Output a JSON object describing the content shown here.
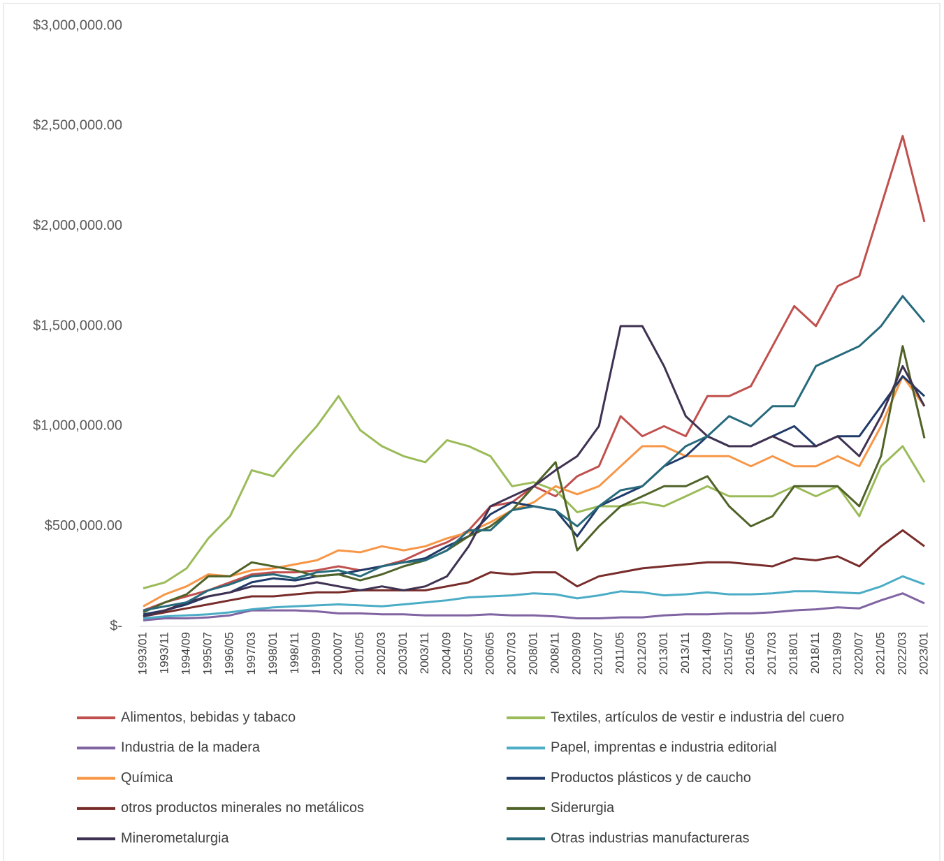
{
  "chart_data": {
    "type": "line",
    "categories": [
      "1993/01",
      "1993/11",
      "1994/09",
      "1995/07",
      "1996/05",
      "1997/03",
      "1998/01",
      "1998/11",
      "1999/09",
      "2000/07",
      "2001/05",
      "2002/03",
      "2003/01",
      "2003/11",
      "2004/09",
      "2005/07",
      "2006/05",
      "2007/03",
      "2008/01",
      "2008/11",
      "2009/09",
      "2010/07",
      "2011/05",
      "2012/03",
      "2013/01",
      "2013/11",
      "2014/09",
      "2015/07",
      "2016/05",
      "2017/03",
      "2018/01",
      "2018/11",
      "2019/09",
      "2020/07",
      "2021/05",
      "2022/03",
      "2023/01"
    ],
    "ylim": [
      0,
      3000000
    ],
    "yticks": [
      {
        "value": 0,
        "label": "$-"
      },
      {
        "value": 500000,
        "label": "$500,000.00"
      },
      {
        "value": 1000000,
        "label": "$1,000,000.00"
      },
      {
        "value": 1500000,
        "label": "$1,500,000.00"
      },
      {
        "value": 2000000,
        "label": "$2,000,000.00"
      },
      {
        "value": 2500000,
        "label": "$2,500,000.00"
      },
      {
        "value": 3000000,
        "label": "$3,000,000.00"
      }
    ],
    "series": [
      {
        "name": "Alimentos, bebidas y tabaco",
        "color": "#c0504d",
        "values": [
          80000,
          120000,
          150000,
          180000,
          220000,
          260000,
          270000,
          270000,
          280000,
          300000,
          280000,
          300000,
          330000,
          380000,
          420000,
          480000,
          600000,
          620000,
          700000,
          650000,
          750000,
          800000,
          1050000,
          950000,
          1000000,
          950000,
          1150000,
          1150000,
          1200000,
          1400000,
          1600000,
          1500000,
          1700000,
          1750000,
          2100000,
          2450000,
          2020000
        ]
      },
      {
        "name": "Textiles, artículos de vestir e industria del cuero",
        "color": "#9bbb59",
        "values": [
          190000,
          220000,
          290000,
          440000,
          550000,
          780000,
          750000,
          880000,
          1000000,
          1150000,
          980000,
          900000,
          850000,
          820000,
          930000,
          900000,
          850000,
          700000,
          720000,
          680000,
          570000,
          600000,
          600000,
          620000,
          600000,
          650000,
          700000,
          650000,
          650000,
          650000,
          700000,
          650000,
          700000,
          550000,
          800000,
          900000,
          720000
        ]
      },
      {
        "name": "Industria de la madera",
        "color": "#8064a2",
        "values": [
          30000,
          40000,
          40000,
          45000,
          55000,
          80000,
          80000,
          80000,
          75000,
          65000,
          65000,
          60000,
          60000,
          55000,
          55000,
          55000,
          60000,
          55000,
          55000,
          50000,
          40000,
          40000,
          45000,
          45000,
          55000,
          60000,
          60000,
          65000,
          65000,
          70000,
          80000,
          85000,
          95000,
          90000,
          130000,
          165000,
          115000
        ]
      },
      {
        "name": "Papel, imprentas e industria editorial",
        "color": "#4bacc6",
        "values": [
          40000,
          50000,
          55000,
          60000,
          70000,
          85000,
          95000,
          100000,
          105000,
          110000,
          105000,
          100000,
          110000,
          120000,
          130000,
          145000,
          150000,
          155000,
          165000,
          160000,
          140000,
          155000,
          175000,
          170000,
          155000,
          160000,
          170000,
          160000,
          160000,
          165000,
          175000,
          175000,
          170000,
          165000,
          200000,
          250000,
          210000
        ]
      },
      {
        "name": "Química",
        "color": "#f79646",
        "values": [
          100000,
          160000,
          200000,
          260000,
          250000,
          280000,
          290000,
          310000,
          330000,
          380000,
          370000,
          400000,
          380000,
          400000,
          440000,
          470000,
          520000,
          580000,
          620000,
          700000,
          660000,
          700000,
          800000,
          900000,
          900000,
          850000,
          850000,
          850000,
          800000,
          850000,
          800000,
          800000,
          850000,
          800000,
          1000000,
          1250000,
          1100000
        ]
      },
      {
        "name": "Productos plásticos y de caucho",
        "color": "#1f3a68",
        "values": [
          60000,
          80000,
          110000,
          150000,
          170000,
          220000,
          240000,
          230000,
          250000,
          260000,
          280000,
          300000,
          320000,
          340000,
          400000,
          450000,
          560000,
          620000,
          600000,
          580000,
          450000,
          600000,
          650000,
          700000,
          800000,
          850000,
          950000,
          900000,
          900000,
          950000,
          1000000,
          900000,
          950000,
          950000,
          1100000,
          1250000,
          1150000
        ]
      },
      {
        "name": "otros productos minerales no metálicos",
        "color": "#772c2a",
        "values": [
          50000,
          70000,
          90000,
          110000,
          130000,
          150000,
          150000,
          160000,
          170000,
          170000,
          180000,
          180000,
          180000,
          180000,
          200000,
          220000,
          270000,
          260000,
          270000,
          270000,
          200000,
          250000,
          270000,
          290000,
          300000,
          310000,
          320000,
          320000,
          310000,
          300000,
          340000,
          330000,
          350000,
          300000,
          400000,
          480000,
          400000
        ]
      },
      {
        "name": "Siderurgia",
        "color": "#4f6228",
        "values": [
          70000,
          120000,
          160000,
          250000,
          250000,
          320000,
          300000,
          280000,
          250000,
          260000,
          230000,
          260000,
          300000,
          330000,
          380000,
          450000,
          500000,
          580000,
          700000,
          820000,
          380000,
          500000,
          600000,
          650000,
          700000,
          700000,
          750000,
          600000,
          500000,
          550000,
          700000,
          700000,
          700000,
          600000,
          850000,
          1400000,
          940000
        ]
      },
      {
        "name": "Minerometalurgia",
        "color": "#3f3151",
        "values": [
          50000,
          80000,
          120000,
          150000,
          170000,
          200000,
          200000,
          200000,
          220000,
          200000,
          180000,
          200000,
          180000,
          200000,
          250000,
          400000,
          600000,
          650000,
          700000,
          780000,
          850000,
          1000000,
          1500000,
          1500000,
          1300000,
          1050000,
          950000,
          900000,
          900000,
          950000,
          900000,
          900000,
          950000,
          850000,
          1050000,
          1300000,
          1100000
        ]
      },
      {
        "name": "Otras industrias manufactureras",
        "color": "#276a7c",
        "values": [
          80000,
          100000,
          120000,
          180000,
          210000,
          250000,
          260000,
          240000,
          270000,
          280000,
          250000,
          300000,
          320000,
          330000,
          380000,
          480000,
          480000,
          580000,
          600000,
          580000,
          500000,
          600000,
          680000,
          700000,
          800000,
          900000,
          950000,
          1050000,
          1000000,
          1100000,
          1100000,
          1300000,
          1350000,
          1400000,
          1500000,
          1650000,
          1520000
        ]
      }
    ]
  }
}
